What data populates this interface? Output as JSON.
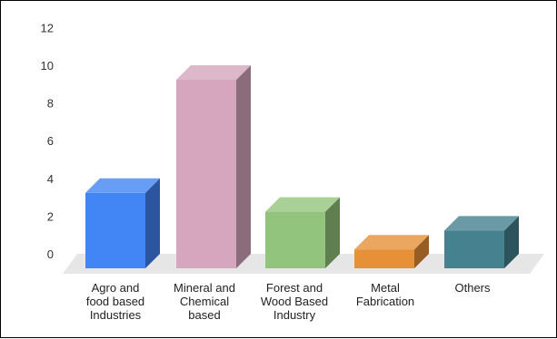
{
  "chart_data": {
    "type": "bar",
    "style": "3d",
    "categories": [
      [
        "Agro and",
        "food based",
        "Industries"
      ],
      [
        "Mineral and",
        "Chemical",
        "based"
      ],
      [
        "Forest and",
        "Wood Based",
        "Industry"
      ],
      [
        "Metal",
        "Fabrication"
      ],
      [
        "Others"
      ]
    ],
    "values": [
      4,
      10,
      3,
      1,
      2
    ],
    "colors": [
      "#4285f4",
      "#d5a6bd",
      "#93c47d",
      "#e69138",
      "#45818e"
    ],
    "yticks": [
      0,
      2,
      4,
      6,
      8,
      10,
      12
    ],
    "ylim": [
      0,
      12
    ],
    "title": "",
    "xlabel": "",
    "ylabel": "",
    "grid": false,
    "legend": "none"
  }
}
